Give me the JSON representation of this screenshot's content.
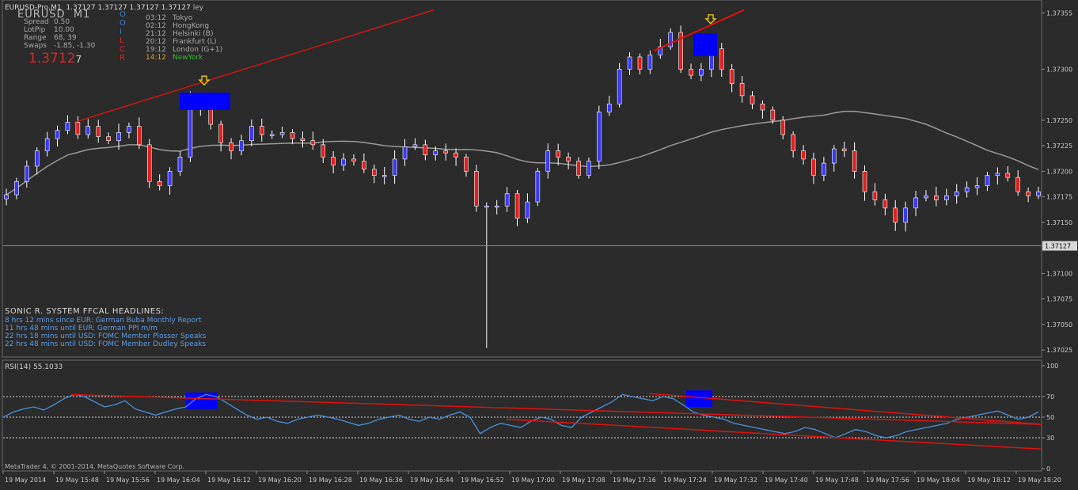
{
  "window": {
    "symbol_label": "EURUSD-Pro,M1",
    "ohlc_text": "1.37127 1.37127 1.37127 1.37127",
    "symbol_big": "EURUSD",
    "tf_big": "M1"
  },
  "info_panel": {
    "rows": [
      {
        "label": "Spread",
        "value": "0.50"
      },
      {
        "label": "LotPip",
        "value": "10.00"
      },
      {
        "label": "Range",
        "value": "68, 39"
      },
      {
        "label": "Swaps",
        "value": "-1.85, -1.30"
      }
    ],
    "price_main": "1.3712",
    "price_last": "7",
    "letters": [
      "O",
      "O",
      "I",
      "L",
      "C",
      "R"
    ]
  },
  "sessions": [
    {
      "time": "03:12",
      "name": "Tokyo"
    },
    {
      "time": "02:12",
      "name": "HongKong"
    },
    {
      "time": "21:12",
      "name": "Helsinki  (B)"
    },
    {
      "time": "20:12",
      "name": "Frankfurt  (L)"
    },
    {
      "time": "19:12",
      "name": "London  (G+1)"
    },
    {
      "time": "14:12",
      "name": "NewYork"
    }
  ],
  "headlines": {
    "title": "SONIC R. SYSTEM  FFCAL HEADLINES:",
    "items": [
      "8 hrs 12 mins since EUR: German Buba Monthly Report",
      "11 hrs 48 mins until EUR: German PPI m/m",
      "22 hrs 18 mins until USD: FOMC Member Plosser Speaks",
      "22 hrs 48 mins until USD: FOMC Member Dudley Speaks"
    ]
  },
  "rsi_label": "RSI(14) 55.1033",
  "copyright": "MetaTrader 4, © 2001-2014, MetaQuotes Software Corp.",
  "colors": {
    "bull": "#3a3af5",
    "bear": "#e02020",
    "trend": "#e01010",
    "ma": "#9a9a9a",
    "rsi": "#4a90d9",
    "zone": "#0000ff"
  },
  "chart_data": [
    {
      "type": "candlestick",
      "title": "EURUSD-Pro,M1",
      "y_axis_ticks": [
        "1.37355",
        "1.37300",
        "1.37250",
        "1.37225",
        "1.37200",
        "1.37175",
        "1.37150",
        "1.37100",
        "1.37075",
        "1.37050",
        "1.37025"
      ],
      "current_price": "1.37127",
      "x_axis_ticks": [
        "19 May 2014",
        "19 May 15:48",
        "19 May 15:56",
        "19 May 16:04",
        "19 May 16:12",
        "19 May 16:20",
        "19 May 16:28",
        "19 May 16:36",
        "19 May 16:44",
        "19 May 16:52",
        "19 May 17:00",
        "19 May 17:08",
        "19 May 17:16",
        "19 May 17:24",
        "19 May 17:32",
        "19 May 17:40",
        "19 May 17:48",
        "19 May 17:56",
        "19 May 18:04",
        "19 May 18:12",
        "19 May 18:20"
      ],
      "close_path": [
        1.37177,
        1.3719,
        1.37205,
        1.3722,
        1.37232,
        1.3724,
        1.37248,
        1.37236,
        1.37244,
        1.37234,
        1.3723,
        1.37238,
        1.37244,
        1.37226,
        1.3719,
        1.37186,
        1.372,
        1.37214,
        1.37272,
        1.37262,
        1.37246,
        1.37228,
        1.3722,
        1.3723,
        1.37244,
        1.37236,
        1.37236,
        1.37238,
        1.37232,
        1.3723,
        1.37226,
        1.37214,
        1.37206,
        1.37212,
        1.3721,
        1.37202,
        1.37196,
        1.37196,
        1.37212,
        1.37224,
        1.37226,
        1.37216,
        1.3722,
        1.37218,
        1.37214,
        1.372,
        1.37166,
        1.37166,
        1.37166,
        1.37178,
        1.37154,
        1.3717,
        1.372,
        1.3722,
        1.37214,
        1.3721,
        1.37196,
        1.3721,
        1.37258,
        1.37266,
        1.373,
        1.37312,
        1.373,
        1.37314,
        1.37322,
        1.37336,
        1.373,
        1.37294,
        1.373,
        1.3732,
        1.373,
        1.37286,
        1.37274,
        1.37266,
        1.3726,
        1.3725,
        1.37236,
        1.3722,
        1.37212,
        1.37196,
        1.37208,
        1.37222,
        1.3722,
        1.372,
        1.3718,
        1.37172,
        1.37164,
        1.3715,
        1.37164,
        1.37174,
        1.37176,
        1.37172,
        1.37176,
        1.3718,
        1.37184,
        1.37186,
        1.37196,
        1.37198,
        1.37194,
        1.3718,
        1.37176,
        1.3718
      ],
      "moving_average_label": "moving average (grey)"
    },
    {
      "type": "line",
      "title": "RSI(14) 55.1033",
      "series": [
        {
          "name": "RSI(14)",
          "values": [
            50,
            55,
            58,
            60,
            57,
            62,
            68,
            72,
            70,
            65,
            60,
            62,
            66,
            58,
            55,
            52,
            55,
            58,
            60,
            68,
            72,
            70,
            64,
            58,
            52,
            48,
            50,
            46,
            44,
            48,
            50,
            52,
            50,
            48,
            45,
            42,
            44,
            48,
            50,
            52,
            48,
            46,
            50,
            48,
            52,
            55,
            50,
            34,
            40,
            44,
            42,
            40,
            46,
            50,
            48,
            42,
            40,
            50,
            55,
            60,
            65,
            72,
            70,
            68,
            66,
            70,
            68,
            62,
            55,
            52,
            50,
            48,
            44,
            42,
            40,
            38,
            36,
            34,
            36,
            40,
            38,
            34,
            30,
            34,
            38,
            36,
            32,
            30,
            32,
            36,
            38,
            40,
            42,
            44,
            48,
            50,
            52,
            54,
            56,
            52,
            48,
            50,
            55
          ]
        }
      ],
      "y_axis_ticks": [
        "100",
        "70",
        "50",
        "30",
        "0"
      ],
      "ylim": [
        0,
        100
      ]
    }
  ]
}
